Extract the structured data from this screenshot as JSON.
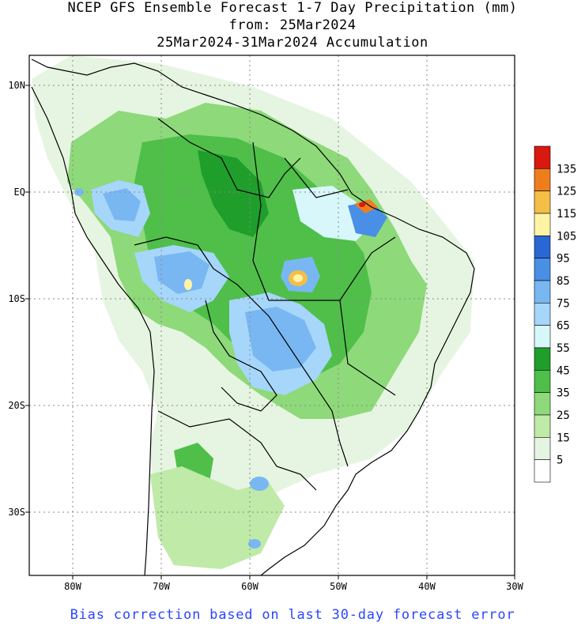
{
  "title": {
    "line1": "NCEP GFS Ensemble Forecast 1-7 Day Precipitation (mm)",
    "line2": "from: 25Mar2024",
    "line3": "25Mar2024-31Mar2024 Accumulation"
  },
  "footer": "Bias correction based on last 30-day forecast error",
  "map": {
    "lon_range": [
      -85,
      -30
    ],
    "lat_range": [
      -37,
      13
    ],
    "x_ticks": [
      "80W",
      "70W",
      "60W",
      "50W",
      "40W",
      "30W"
    ],
    "y_ticks": [
      "10N",
      "EQ",
      "10S",
      "20S",
      "30S"
    ],
    "grid": true
  },
  "legend": {
    "levels": [
      "5",
      "15",
      "25",
      "35",
      "45",
      "55",
      "65",
      "75",
      "85",
      "95",
      "105",
      "115",
      "125",
      "135"
    ],
    "colors": [
      "#ffffff",
      "#e6f5e1",
      "#bfeaa8",
      "#8ed97a",
      "#4fbf4a",
      "#1f9e2b",
      "#d8f7fb",
      "#a6d6fa",
      "#79b7f2",
      "#4a8fe6",
      "#2b67d4",
      "#fff4a6",
      "#f4be47",
      "#f07d1c",
      "#d9180f"
    ]
  }
}
